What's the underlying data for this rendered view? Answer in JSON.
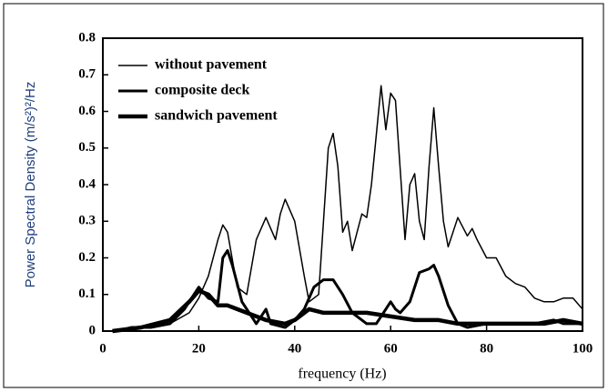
{
  "chart_data": {
    "type": "line",
    "xlabel": "frequency (Hz)",
    "ylabel": "Power Spectral Density (m/s²)²/Hz",
    "xlim": [
      0,
      100
    ],
    "xticks": [
      0,
      20,
      40,
      60,
      80,
      100
    ],
    "ylim": [
      0,
      0.8
    ],
    "yticks": [
      0,
      0.1,
      0.2,
      0.3,
      0.4,
      0.5,
      0.6,
      0.7,
      0.8
    ],
    "legend": "upper left",
    "series": [
      {
        "name": "without pavement",
        "color": "#000000",
        "width": 1.5,
        "x": [
          4,
          6,
          10,
          14,
          18,
          20,
          22,
          24,
          25,
          26,
          28,
          30,
          32,
          34,
          36,
          37,
          38,
          40,
          42,
          43,
          45,
          46,
          47,
          48,
          49,
          50,
          51,
          52,
          54,
          55,
          56,
          58,
          59,
          60,
          61,
          63,
          64,
          65,
          66,
          67,
          68,
          69,
          70,
          71,
          72,
          74,
          76,
          77,
          78,
          80,
          82,
          84,
          86,
          88,
          90,
          92,
          94,
          96,
          98,
          100
        ],
        "values": [
          0,
          0.01,
          0.01,
          0.02,
          0.05,
          0.09,
          0.15,
          0.25,
          0.29,
          0.27,
          0.12,
          0.1,
          0.25,
          0.31,
          0.25,
          0.32,
          0.36,
          0.3,
          0.15,
          0.08,
          0.1,
          0.3,
          0.5,
          0.54,
          0.45,
          0.27,
          0.3,
          0.22,
          0.32,
          0.31,
          0.4,
          0.67,
          0.55,
          0.65,
          0.63,
          0.25,
          0.4,
          0.43,
          0.3,
          0.25,
          0.45,
          0.61,
          0.45,
          0.3,
          0.23,
          0.31,
          0.26,
          0.28,
          0.25,
          0.2,
          0.2,
          0.15,
          0.13,
          0.12,
          0.09,
          0.08,
          0.08,
          0.09,
          0.09,
          0.06
        ]
      },
      {
        "name": "composite deck",
        "color": "#000000",
        "width": 3,
        "x": [
          3,
          6,
          10,
          14,
          17,
          20,
          22,
          24,
          25,
          26,
          27,
          29,
          31,
          32,
          34,
          35,
          38,
          40,
          42,
          44,
          46,
          48,
          50,
          52,
          55,
          57,
          58,
          60,
          61,
          62,
          64,
          66,
          68,
          69,
          70,
          72,
          74,
          76,
          80,
          84,
          90,
          94,
          96,
          100
        ],
        "values": [
          0,
          0.01,
          0.01,
          0.02,
          0.06,
          0.12,
          0.09,
          0.08,
          0.2,
          0.22,
          0.18,
          0.08,
          0.04,
          0.02,
          0.06,
          0.02,
          0.01,
          0.03,
          0.06,
          0.12,
          0.14,
          0.14,
          0.1,
          0.05,
          0.02,
          0.02,
          0.04,
          0.08,
          0.06,
          0.05,
          0.08,
          0.16,
          0.17,
          0.18,
          0.15,
          0.07,
          0.02,
          0.01,
          0.02,
          0.02,
          0.02,
          0.03,
          0.02,
          0.02
        ]
      },
      {
        "name": "sandwich pavement",
        "color": "#000000",
        "width": 4.5,
        "x": [
          2,
          8,
          14,
          18,
          20,
          22,
          24,
          26,
          28,
          30,
          34,
          38,
          40,
          43,
          46,
          50,
          55,
          60,
          65,
          70,
          74,
          80,
          86,
          92,
          96,
          100
        ],
        "values": [
          0,
          0.01,
          0.03,
          0.08,
          0.11,
          0.1,
          0.07,
          0.07,
          0.06,
          0.05,
          0.03,
          0.02,
          0.03,
          0.06,
          0.05,
          0.05,
          0.05,
          0.04,
          0.03,
          0.03,
          0.02,
          0.02,
          0.02,
          0.02,
          0.03,
          0.02
        ]
      }
    ]
  }
}
